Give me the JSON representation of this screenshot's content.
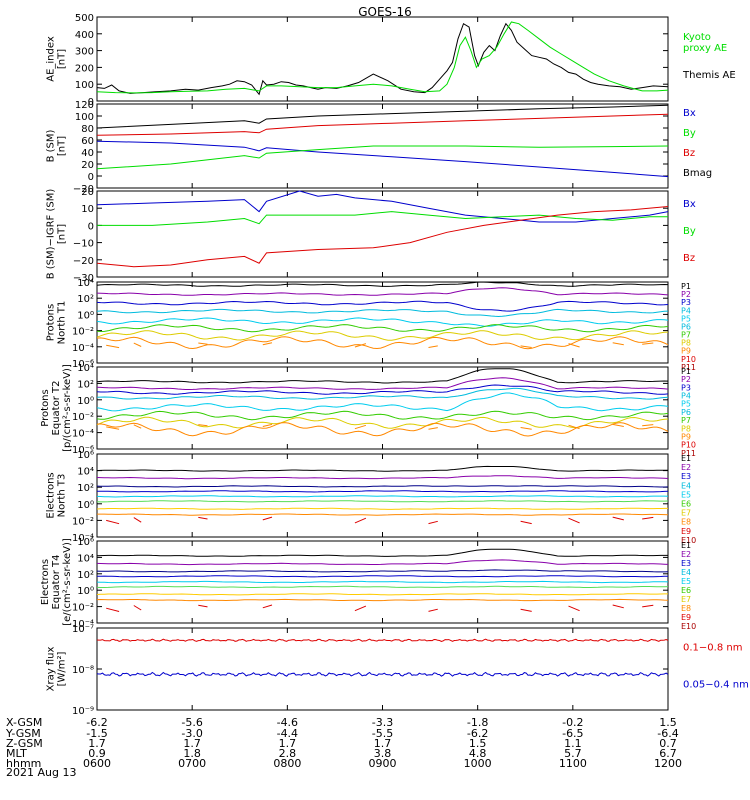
{
  "title": "GOES-16",
  "date_label": "2021 Aug 13",
  "colors": {
    "black": "#000000",
    "green": "#00dd00",
    "blue": "#0000cc",
    "red": "#dd0000",
    "purple": "#8800aa",
    "cyan": "#00bbdd",
    "lime": "#33cc00",
    "yellow": "#ddcc00",
    "orange": "#ff8800",
    "darkred": "#aa0000",
    "navy": "#000088",
    "lightgreen": "#55dd55",
    "aqua": "#00ccee",
    "gold": "#ffcc00"
  },
  "x_axis": {
    "rows": [
      {
        "label": "X-GSM",
        "values": [
          "-6.2",
          "-5.6",
          "-4.6",
          "-3.3",
          "-1.8",
          "-0.2",
          "1.5"
        ]
      },
      {
        "label": "Y-GSM",
        "values": [
          "-1.5",
          "-3.0",
          "-4.4",
          "-5.5",
          "-6.2",
          "-6.5",
          "-6.4"
        ]
      },
      {
        "label": "Z-GSM",
        "values": [
          "1.7",
          "1.7",
          "1.7",
          "1.7",
          "1.5",
          "1.1",
          "0.7"
        ]
      },
      {
        "label": "MLT",
        "values": [
          "0.9",
          "1.8",
          "2.8",
          "3.8",
          "4.8",
          "5.7",
          "6.7"
        ]
      },
      {
        "label": "hhmm",
        "values": [
          "0600",
          "0700",
          "0800",
          "0900",
          "1000",
          "1100",
          "1200"
        ]
      }
    ]
  },
  "panels": [
    {
      "id": "ae",
      "ylabel": "AE_index\n[nT]",
      "yticks": [
        "500",
        "400",
        "300",
        "200",
        "100",
        "0"
      ],
      "legend": [
        {
          "text": "Kyoto\nproxy AE",
          "color": "#00dd00"
        },
        {
          "text": "Themis AE",
          "color": "#000000"
        }
      ]
    },
    {
      "id": "bsm",
      "ylabel": "B (SM)\n[nT]",
      "yticks": [
        "120",
        "100",
        "80",
        "60",
        "40",
        "20",
        "0",
        "−20"
      ],
      "legend": [
        {
          "text": "Bx",
          "color": "#0000cc"
        },
        {
          "text": "By",
          "color": "#00dd00"
        },
        {
          "text": "Bz",
          "color": "#dd0000"
        },
        {
          "text": "Bmag",
          "color": "#000000"
        }
      ]
    },
    {
      "id": "bigrf",
      "ylabel": "B (SM)−IGRF (SM)\n[nT]",
      "yticks": [
        "20",
        "10",
        "0",
        "−10",
        "−20",
        "−30"
      ],
      "legend": [
        {
          "text": "Bx",
          "color": "#0000cc"
        },
        {
          "text": "By",
          "color": "#00dd00"
        },
        {
          "text": "Bz",
          "color": "#dd0000"
        }
      ]
    },
    {
      "id": "pn",
      "ylabel": "Protons\nNorth T1",
      "yticks": [
        "10⁴",
        "10²",
        "10⁰",
        "10⁻²",
        "10⁻⁴",
        "10⁻⁶"
      ],
      "legend": [
        {
          "text": "P1",
          "color": "#000000"
        },
        {
          "text": "P2",
          "color": "#8800aa"
        },
        {
          "text": "P3",
          "color": "#0000cc"
        },
        {
          "text": "P4",
          "color": "#00bbdd"
        },
        {
          "text": "P5",
          "color": "#00ccee"
        },
        {
          "text": "P6",
          "color": "#00bbdd"
        },
        {
          "text": "P7",
          "color": "#33cc00"
        },
        {
          "text": "P8",
          "color": "#ddcc00"
        },
        {
          "text": "P9",
          "color": "#ff8800"
        },
        {
          "text": "P10",
          "color": "#dd0000"
        },
        {
          "text": "P11",
          "color": "#aa0000"
        }
      ]
    },
    {
      "id": "pe",
      "ylabel": "Protons\nEquator T2\n[p/(cm²-s-sr-keV)]",
      "yticks": [
        "10⁴",
        "10²",
        "10⁰",
        "10⁻²",
        "10⁻⁴",
        "10⁻⁶"
      ],
      "legend": [
        {
          "text": "P1",
          "color": "#000000"
        },
        {
          "text": "P2",
          "color": "#8800aa"
        },
        {
          "text": "P3",
          "color": "#0000cc"
        },
        {
          "text": "P4",
          "color": "#00bbdd"
        },
        {
          "text": "P5",
          "color": "#00ccee"
        },
        {
          "text": "P6",
          "color": "#00bbdd"
        },
        {
          "text": "P7",
          "color": "#33cc00"
        },
        {
          "text": "P8",
          "color": "#ddcc00"
        },
        {
          "text": "P9",
          "color": "#ff8800"
        },
        {
          "text": "P10",
          "color": "#dd0000"
        },
        {
          "text": "P11",
          "color": "#aa0000"
        }
      ]
    },
    {
      "id": "en",
      "ylabel": "Electrons\nNorth T3",
      "yticks": [
        "10⁶",
        "10⁴",
        "10²",
        "10⁰",
        "10⁻²",
        "10⁻⁴"
      ],
      "legend": [
        {
          "text": "E1",
          "color": "#000000"
        },
        {
          "text": "E2",
          "color": "#8800aa"
        },
        {
          "text": "E3",
          "color": "#0000cc"
        },
        {
          "text": "E4",
          "color": "#00bbdd"
        },
        {
          "text": "E5",
          "color": "#00ccee"
        },
        {
          "text": "E6",
          "color": "#33cc00"
        },
        {
          "text": "E7",
          "color": "#ddcc00"
        },
        {
          "text": "E8",
          "color": "#ff8800"
        },
        {
          "text": "E9",
          "color": "#dd0000"
        },
        {
          "text": "E10",
          "color": "#aa0000"
        }
      ]
    },
    {
      "id": "ee",
      "ylabel": "Electrons\nEquator T4\n[e/(cm²-s-sr-keV)]",
      "yticks": [
        "10⁶",
        "10⁴",
        "10²",
        "10⁰",
        "10⁻²",
        "10⁻⁴"
      ],
      "legend": [
        {
          "text": "E1",
          "color": "#000000"
        },
        {
          "text": "E2",
          "color": "#8800aa"
        },
        {
          "text": "E3",
          "color": "#0000cc"
        },
        {
          "text": "E4",
          "color": "#00bbdd"
        },
        {
          "text": "E5",
          "color": "#00ccee"
        },
        {
          "text": "E6",
          "color": "#33cc00"
        },
        {
          "text": "E7",
          "color": "#ddcc00"
        },
        {
          "text": "E8",
          "color": "#ff8800"
        },
        {
          "text": "E9",
          "color": "#dd0000"
        },
        {
          "text": "E10",
          "color": "#aa0000"
        }
      ]
    },
    {
      "id": "xray",
      "ylabel": "Xray flux\n[W/m²]",
      "yticks": [
        "10⁻⁷",
        "10⁻⁸",
        "10⁻⁹"
      ],
      "legend": [
        {
          "text": "0.1−0.8 nm",
          "color": "#dd0000"
        },
        {
          "text": "0.05−0.4 nm",
          "color": "#0000cc"
        }
      ]
    }
  ],
  "chart_data": {
    "type": "line",
    "title": "GOES-16",
    "x_label": "hhmm",
    "x_range": [
      "0600",
      "1200"
    ],
    "series": {
      "ae": {
        "ylim": [
          0,
          500
        ],
        "themis": [
          [
            0,
            80
          ],
          [
            4,
            75
          ],
          [
            8,
            95
          ],
          [
            12,
            60
          ],
          [
            18,
            45
          ],
          [
            25,
            50
          ],
          [
            32,
            55
          ],
          [
            40,
            60
          ],
          [
            48,
            70
          ],
          [
            55,
            65
          ],
          [
            62,
            80
          ],
          [
            68,
            90
          ],
          [
            72,
            100
          ],
          [
            76,
            120
          ],
          [
            80,
            115
          ],
          [
            84,
            95
          ],
          [
            88,
            40
          ],
          [
            90,
            120
          ],
          [
            92,
            95
          ],
          [
            96,
            100
          ],
          [
            100,
            115
          ],
          [
            104,
            110
          ],
          [
            108,
            95
          ],
          [
            112,
            90
          ],
          [
            116,
            80
          ],
          [
            120,
            70
          ],
          [
            124,
            80
          ],
          [
            130,
            75
          ],
          [
            136,
            90
          ],
          [
            142,
            110
          ],
          [
            150,
            160
          ],
          [
            158,
            120
          ],
          [
            165,
            70
          ],
          [
            172,
            55
          ],
          [
            178,
            50
          ],
          [
            182,
            80
          ],
          [
            186,
            130
          ],
          [
            190,
            180
          ],
          [
            193,
            230
          ],
          [
            196,
            370
          ],
          [
            199,
            460
          ],
          [
            202,
            440
          ],
          [
            205,
            270
          ],
          [
            207,
            210
          ],
          [
            210,
            290
          ],
          [
            213,
            330
          ],
          [
            216,
            300
          ],
          [
            219,
            390
          ],
          [
            222,
            460
          ],
          [
            225,
            420
          ],
          [
            228,
            350
          ],
          [
            232,
            310
          ],
          [
            236,
            270
          ],
          [
            240,
            260
          ],
          [
            244,
            250
          ],
          [
            248,
            220
          ],
          [
            252,
            200
          ],
          [
            256,
            170
          ],
          [
            260,
            160
          ],
          [
            264,
            130
          ],
          [
            268,
            110
          ],
          [
            272,
            100
          ],
          [
            278,
            90
          ],
          [
            284,
            85
          ],
          [
            290,
            70
          ],
          [
            296,
            80
          ],
          [
            302,
            90
          ],
          [
            310,
            85
          ]
        ],
        "kyoto": [
          [
            0,
            55
          ],
          [
            10,
            50
          ],
          [
            20,
            48
          ],
          [
            30,
            50
          ],
          [
            40,
            55
          ],
          [
            50,
            58
          ],
          [
            60,
            60
          ],
          [
            70,
            70
          ],
          [
            80,
            75
          ],
          [
            88,
            60
          ],
          [
            92,
            90
          ],
          [
            100,
            90
          ],
          [
            110,
            85
          ],
          [
            120,
            80
          ],
          [
            130,
            80
          ],
          [
            140,
            90
          ],
          [
            150,
            100
          ],
          [
            160,
            90
          ],
          [
            170,
            70
          ],
          [
            178,
            55
          ],
          [
            186,
            60
          ],
          [
            190,
            100
          ],
          [
            194,
            200
          ],
          [
            197,
            330
          ],
          [
            200,
            380
          ],
          [
            203,
            300
          ],
          [
            206,
            200
          ],
          [
            209,
            250
          ],
          [
            213,
            270
          ],
          [
            217,
            320
          ],
          [
            221,
            400
          ],
          [
            225,
            470
          ],
          [
            229,
            460
          ],
          [
            234,
            420
          ],
          [
            240,
            370
          ],
          [
            246,
            320
          ],
          [
            252,
            280
          ],
          [
            258,
            240
          ],
          [
            264,
            200
          ],
          [
            270,
            160
          ],
          [
            278,
            120
          ],
          [
            286,
            90
          ],
          [
            296,
            60
          ],
          [
            304,
            60
          ],
          [
            310,
            65
          ]
        ]
      },
      "bsm": {
        "ylim": [
          -20,
          120
        ],
        "Bmag": [
          [
            0,
            80
          ],
          [
            40,
            86
          ],
          [
            80,
            92
          ],
          [
            88,
            88
          ],
          [
            92,
            95
          ],
          [
            120,
            100
          ],
          [
            160,
            104
          ],
          [
            200,
            108
          ],
          [
            240,
            112
          ],
          [
            280,
            115
          ],
          [
            310,
            118
          ]
        ],
        "Bz": [
          [
            0,
            68
          ],
          [
            40,
            70
          ],
          [
            80,
            74
          ],
          [
            88,
            72
          ],
          [
            92,
            78
          ],
          [
            120,
            84
          ],
          [
            160,
            88
          ],
          [
            200,
            92
          ],
          [
            240,
            96
          ],
          [
            280,
            100
          ],
          [
            310,
            103
          ]
        ],
        "Bx": [
          [
            0,
            58
          ],
          [
            40,
            55
          ],
          [
            80,
            48
          ],
          [
            88,
            42
          ],
          [
            92,
            47
          ],
          [
            120,
            40
          ],
          [
            160,
            32
          ],
          [
            200,
            24
          ],
          [
            240,
            15
          ],
          [
            280,
            6
          ],
          [
            310,
            -1
          ]
        ],
        "By": [
          [
            0,
            12
          ],
          [
            40,
            20
          ],
          [
            80,
            34
          ],
          [
            88,
            30
          ],
          [
            92,
            38
          ],
          [
            120,
            44
          ],
          [
            150,
            50
          ],
          [
            200,
            50
          ],
          [
            240,
            48
          ],
          [
            280,
            49
          ],
          [
            310,
            50
          ]
        ]
      },
      "bigrf": {
        "ylim": [
          -30,
          20
        ],
        "Bx": [
          [
            0,
            12
          ],
          [
            30,
            13
          ],
          [
            60,
            14
          ],
          [
            80,
            15
          ],
          [
            88,
            8
          ],
          [
            92,
            14
          ],
          [
            110,
            20
          ],
          [
            120,
            17
          ],
          [
            130,
            18
          ],
          [
            140,
            16
          ],
          [
            160,
            14
          ],
          [
            180,
            10
          ],
          [
            200,
            6
          ],
          [
            220,
            4
          ],
          [
            240,
            2
          ],
          [
            260,
            2
          ],
          [
            280,
            4
          ],
          [
            300,
            6
          ],
          [
            310,
            8
          ]
        ],
        "By": [
          [
            0,
            0
          ],
          [
            30,
            0
          ],
          [
            60,
            2
          ],
          [
            80,
            4
          ],
          [
            88,
            1
          ],
          [
            92,
            6
          ],
          [
            120,
            6
          ],
          [
            140,
            6
          ],
          [
            160,
            8
          ],
          [
            180,
            6
          ],
          [
            200,
            4
          ],
          [
            220,
            5
          ],
          [
            240,
            6
          ],
          [
            260,
            4
          ],
          [
            280,
            3
          ],
          [
            300,
            5
          ],
          [
            310,
            5
          ]
        ],
        "Bz": [
          [
            0,
            -22
          ],
          [
            20,
            -24
          ],
          [
            40,
            -23
          ],
          [
            60,
            -20
          ],
          [
            80,
            -18
          ],
          [
            88,
            -22
          ],
          [
            92,
            -16
          ],
          [
            120,
            -14
          ],
          [
            150,
            -13
          ],
          [
            170,
            -10
          ],
          [
            190,
            -4
          ],
          [
            210,
            0
          ],
          [
            230,
            3
          ],
          [
            250,
            6
          ],
          [
            270,
            8
          ],
          [
            290,
            9
          ],
          [
            310,
            11
          ]
        ]
      },
      "xray": {
        "ylim_log": [
          -9,
          -7
        ],
        "long_0.1_0.8nm": -7.3,
        "short_0.05_0.4nm": -8.13
      }
    }
  }
}
